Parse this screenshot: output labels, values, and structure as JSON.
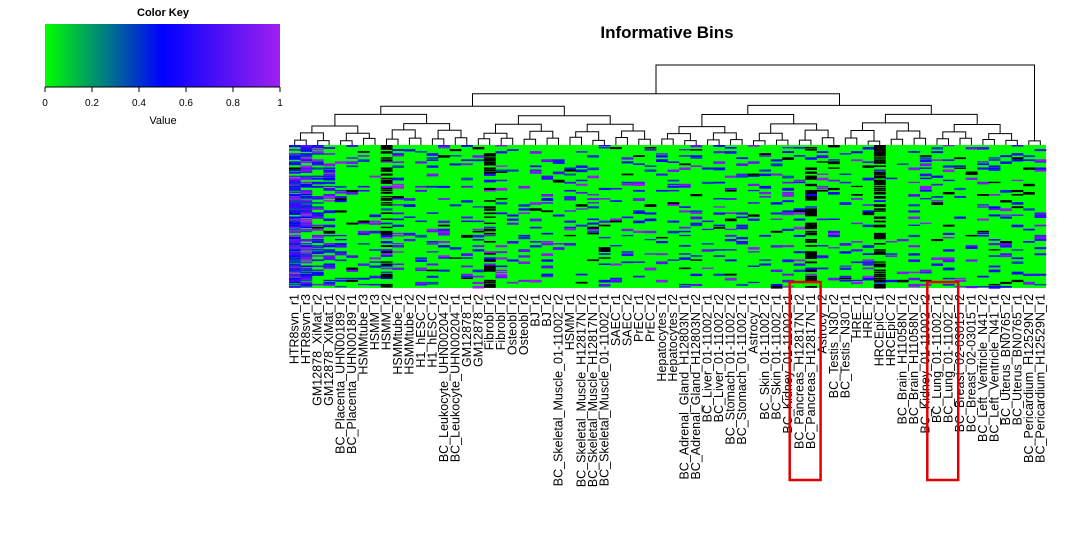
{
  "chart_data": {
    "type": "heatmap",
    "title": "Informative Bins",
    "color_key": {
      "title": "Color Key",
      "label": "Value",
      "ticks": [
        "0",
        "0.2",
        "0.4",
        "0.6",
        "0.8",
        "1"
      ],
      "range": [
        0,
        1
      ],
      "colors": [
        "#00ff00",
        "#0000ff",
        "#a020f0"
      ]
    },
    "missing_color": "#000000",
    "dendrogram": "columns",
    "highlight_color": "#e00000",
    "columns": [
      "HTR8svn_r1",
      "HTR8svn_r3",
      "GM12878_XiMat_r2",
      "GM12878_XiMat_r1",
      "BC_Placenta_UHN00189_r2",
      "BC_Placenta_UHN00189_r1",
      "HSMMtube_r3",
      "HSMM_r3",
      "HSMM_r2",
      "HSMMtube_r1",
      "HSMMtube_r2",
      "H1_hESC_r2",
      "H1_hESC_r1",
      "BC_Leukocyte_UHN00204_r2",
      "BC_Leukocyte_UHN00204_r1",
      "GM12878_r1",
      "GM12878_r2",
      "Fibrobl_r1",
      "Fibrobl_r2",
      "Osteobl_r1",
      "Osteobl_r2",
      "BJ_r1",
      "BJ_r2",
      "BC_Skeletal_Muscle_01-11002_r2",
      "HSMM_r1",
      "BC_Skeletal_Muscle_H12817N_r2",
      "BC_Skeletal_Muscle_H12817N_r1",
      "BC_Skeletal_Muscle_01-11002_r1",
      "SAEC_r1",
      "SAEC_r2",
      "PrEC_r1",
      "PrEC_r2",
      "Hepatocytes_r1",
      "Hepatocytes_r2",
      "BC_Adrenal_Gland_H12803N_r1",
      "BC_Adrenal_Gland_H12803N_r2",
      "BC_Liver_01-11002_r1",
      "BC_Liver_01-11002_r2",
      "BC_Stomach_01-11002_r2",
      "BC_Stomach_01-11002_r1",
      "Astrocy_r1",
      "BC_Skin_01-11002_r2",
      "BC_Skin_01-11002_r1",
      "BC_Kidney_01-11002_r1",
      "BC_Pancreas_H12817N_r2",
      "BC_Pancreas_H12817N_r1",
      "Astrocy_r2",
      "BC_Testis_N30_r2",
      "BC_Testis_N30_r1",
      "HRE_r1",
      "HRE_r2",
      "HRCEpiC_r1",
      "HRCEpiC_r2",
      "BC_Brain_H11058N_r1",
      "BC_Brain_H11058N_r2",
      "BC_Kidney_01-11002_r2",
      "BC_Lung_01-11002_r1",
      "BC_Lung_01-11002_r2",
      "BC_Breast_02-03015_r2",
      "BC_Breast_02-03015_r1",
      "BC_Left_Ventricle_N41_r2",
      "BC_Left_Ventricle_N41_r1",
      "BC_Uterus_BN0765_r2",
      "BC_Uterus_BN0765_r1",
      "BC_Pericardium_H12529N_r2",
      "BC_Pericardium_H12529N_r1"
    ],
    "highlighted_columns": [
      "BC_Pancreas_H12817N_r2",
      "BC_Pancreas_H12817N_r1",
      "BC_Lung_01-11002_r1",
      "BC_Lung_01-11002_r2"
    ]
  }
}
